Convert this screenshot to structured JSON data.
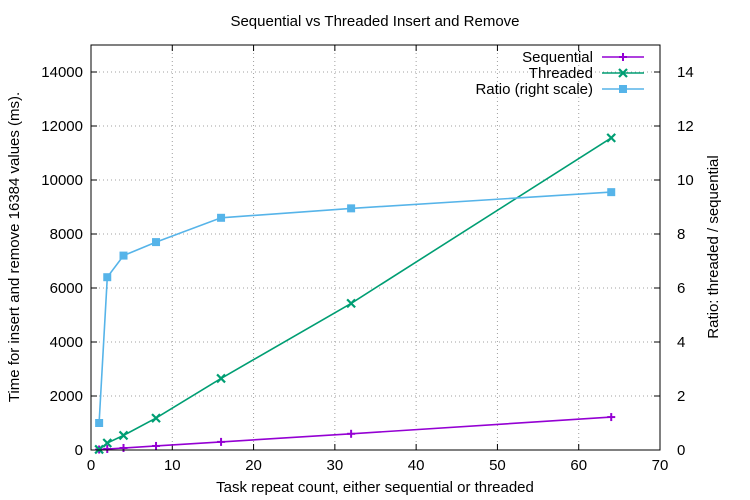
{
  "chart_data": {
    "type": "line",
    "title": "Sequential vs Threaded Insert and Remove",
    "xlabel": "Task repeat count, either sequential or threaded",
    "ylabel": "Time for insert and remove 16384 values (ms).",
    "y2label": "Ratio: threaded / sequential",
    "xlim": [
      0,
      70
    ],
    "ylim": [
      0,
      15000
    ],
    "y2lim": [
      0,
      15
    ],
    "xticks": [
      0,
      10,
      20,
      30,
      40,
      50,
      60,
      70
    ],
    "yticks": [
      0,
      2000,
      4000,
      6000,
      8000,
      10000,
      12000,
      14000
    ],
    "y2ticks": [
      0,
      2,
      4,
      6,
      8,
      10,
      12,
      14
    ],
    "grid": true,
    "legend": "top-right",
    "series": [
      {
        "name": "Sequential",
        "axis": "left",
        "color": "#9400d3",
        "marker": "plus",
        "x": [
          1,
          2,
          4,
          8,
          16,
          32,
          64
        ],
        "values": [
          18,
          38,
          75,
          150,
          300,
          600,
          1220
        ]
      },
      {
        "name": "Threaded",
        "axis": "left",
        "color": "#009e73",
        "marker": "cross",
        "x": [
          1,
          2,
          4,
          8,
          16,
          32,
          64
        ],
        "values": [
          20,
          260,
          540,
          1180,
          2650,
          5430,
          11560
        ]
      },
      {
        "name": "Ratio (right scale)",
        "axis": "right",
        "color": "#56b4e9",
        "marker": "square",
        "x": [
          1,
          2,
          4,
          8,
          16,
          32,
          64
        ],
        "values": [
          1.0,
          6.4,
          7.2,
          7.7,
          8.6,
          8.95,
          9.55
        ]
      }
    ]
  }
}
